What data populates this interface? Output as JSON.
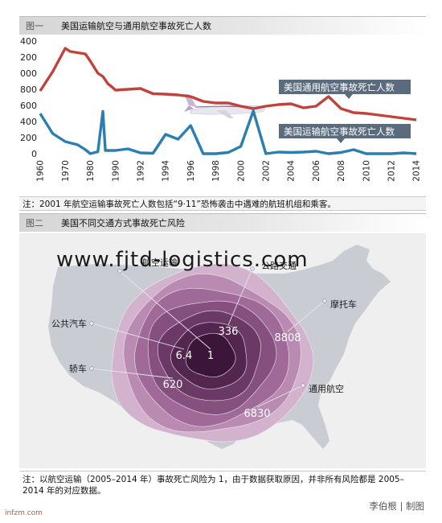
{
  "figure1": {
    "tag": "图一",
    "title": "美国运输航空与通用航空事故死亡人数",
    "note": "注：2001 年航空运输事故死亡人数包括“9·11”恐怖袭击中遇难的航班机组和乘客。"
  },
  "figure2": {
    "tag": "图二",
    "title": "美国不同交通方式事故死亡风险",
    "note": "注：以航空运输（2005–2014 年）事故死亡风险为 1，由于数据获取原因，并非所有风险都是 2005–2014 年的对应数据。"
  },
  "watermark": "www.fjtd-logistics.com",
  "credit": "李伯根 | 制图",
  "source": "infzm.com",
  "colors": {
    "general_aviation": "#c0443b",
    "air_transport": "#2b7fb0",
    "rings": [
      "#d3b2cd",
      "#b98ab2",
      "#9f6a97",
      "#85507e",
      "#6b3965",
      "#532650",
      "#3c163a"
    ],
    "map": "#c9ccd3",
    "header_gradient_start": "#d6d6d6"
  },
  "decorative_icons": [
    "airplane-icon",
    "us-map"
  ],
  "chart_data": [
    {
      "type": "line",
      "x": [
        "1960",
        "1965",
        "1970",
        "1975",
        "1980",
        "1985",
        "1990",
        "1992",
        "1994",
        "1996",
        "1998",
        "2000",
        "2001",
        "2002",
        "2004",
        "2006",
        "2008",
        "2010",
        "2012",
        "2014"
      ],
      "categories": [
        "1960",
        "1970",
        "1980",
        "1990",
        "1992",
        "1994",
        "1996",
        "1998",
        "2000",
        "2002",
        "2004",
        "2006",
        "2008",
        "2010",
        "2012",
        "2014"
      ],
      "ylim": [
        0,
        1400
      ],
      "yticks": [
        "0",
        "200",
        "400",
        "600",
        "800",
        "1000",
        "1200",
        "1400"
      ],
      "grid": false,
      "series": [
        {
          "name": "美国通用航空事故死亡人数",
          "points": [
            [
              "1960",
              780
            ],
            [
              "1965",
              1020
            ],
            [
              "1970",
              1310
            ],
            [
              "1972",
              1270
            ],
            [
              "1975",
              1255
            ],
            [
              "1978",
              1240
            ],
            [
              "1980",
              1150
            ],
            [
              "1983",
              1000
            ],
            [
              "1985",
              960
            ],
            [
              "1987",
              870
            ],
            [
              "1989",
              820
            ],
            [
              "1990",
              790
            ],
            [
              "1992",
              810
            ],
            [
              "1993",
              745
            ],
            [
              "1994",
              740
            ],
            [
              "1995",
              730
            ],
            [
              "1996",
              710
            ],
            [
              "1997",
              650
            ],
            [
              "1998",
              630
            ],
            [
              "1999",
              630
            ],
            [
              "2000",
              590
            ],
            [
              "2001",
              560
            ],
            [
              "2002",
              590
            ],
            [
              "2003",
              610
            ],
            [
              "2004",
              620
            ],
            [
              "2005",
              570
            ],
            [
              "2006",
              590
            ],
            [
              "2007",
              710
            ],
            [
              "2008",
              560
            ],
            [
              "2009",
              510
            ],
            [
              "2010",
              500
            ],
            [
              "2011",
              480
            ],
            [
              "2012",
              460
            ],
            [
              "2013",
              440
            ],
            [
              "2014",
              420
            ]
          ]
        },
        {
          "name": "美国运输航空事故死亡人数",
          "points": [
            [
              "1960",
              499
            ],
            [
              "1965",
              250
            ],
            [
              "1970",
              150
            ],
            [
              "1975",
              110
            ],
            [
              "1978",
              50
            ],
            [
              "1980",
              0
            ],
            [
              "1983",
              25
            ],
            [
              "1985",
              526
            ],
            [
              "1986",
              40
            ],
            [
              "1987",
              40
            ],
            [
              "1989",
              40
            ],
            [
              "1990",
              40
            ],
            [
              "1991",
              60
            ],
            [
              "1992",
              10
            ],
            [
              "1993",
              5
            ],
            [
              "1994",
              240
            ],
            [
              "1995",
              180
            ],
            [
              "1996",
              350
            ],
            [
              "1997",
              0
            ],
            [
              "1998",
              0
            ],
            [
              "1999",
              15
            ],
            [
              "2000",
              90
            ],
            [
              "2001",
              531
            ],
            [
              "2002",
              0
            ],
            [
              "2003",
              20
            ],
            [
              "2004",
              15
            ],
            [
              "2005",
              20
            ],
            [
              "2006",
              30
            ],
            [
              "2007",
              0
            ],
            [
              "2008",
              15
            ],
            [
              "2009",
              50
            ],
            [
              "2010",
              0
            ],
            [
              "2011",
              0
            ],
            [
              "2012",
              0
            ],
            [
              "2013",
              10
            ],
            [
              "2014",
              0
            ]
          ]
        }
      ]
    },
    {
      "type": "bubble",
      "values": [
        {
          "name": "航空运输",
          "value": 1
        },
        {
          "name": "公共汽车",
          "value": 6.4
        },
        {
          "name": "公路交通",
          "value": 336
        },
        {
          "name": "轿车",
          "value": 620
        },
        {
          "name": "通用航空",
          "value": 6830
        },
        {
          "name": "摩托车",
          "value": 8808
        }
      ]
    }
  ]
}
